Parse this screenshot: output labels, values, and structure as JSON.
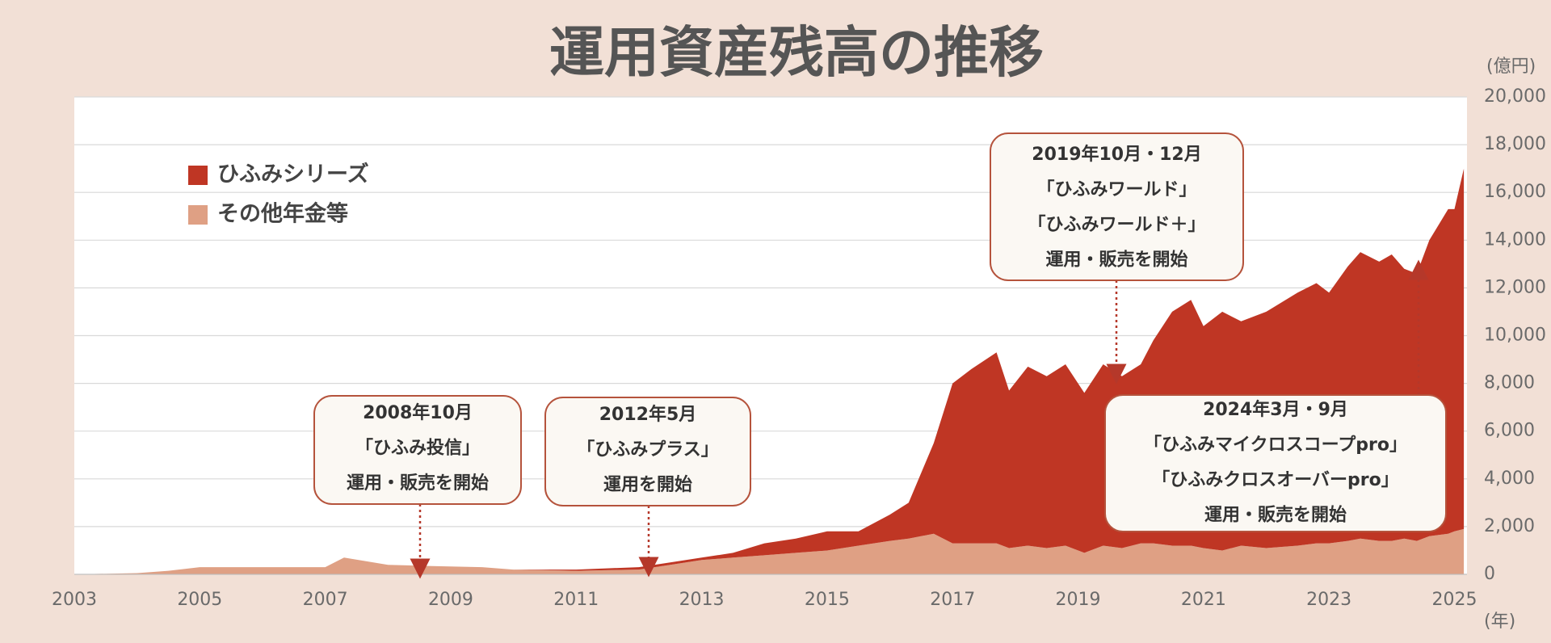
{
  "chart_data": {
    "type": "stacked_area",
    "title": "運用資産残高の推移",
    "ylabel": "(億円)",
    "xlabel": "(年)",
    "x": [
      2003,
      2004,
      2004.5,
      2005,
      2006,
      2007,
      2007.3,
      2008,
      2008.7,
      2009.5,
      2010,
      2011,
      2012,
      2012.5,
      2013,
      2013.5,
      2014,
      2014.5,
      2015,
      2015.5,
      2016,
      2016.3,
      2016.7,
      2017,
      2017.3,
      2017.7,
      2017.9,
      2018.2,
      2018.5,
      2018.8,
      2019.1,
      2019.4,
      2019.7,
      2020,
      2020.2,
      2020.5,
      2020.8,
      2021,
      2021.3,
      2021.6,
      2022,
      2022.5,
      2022.8,
      2023,
      2023.3,
      2023.5,
      2023.8,
      2024,
      2024.2,
      2024.4,
      2024.6,
      2024.9,
      2025,
      2025.15
    ],
    "series": [
      {
        "name": "ひふみシリーズ",
        "color": "#bf3624",
        "values": [
          0,
          0,
          0,
          0,
          0,
          0,
          0,
          0,
          0,
          0,
          0,
          50,
          100,
          100,
          100,
          200,
          500,
          600,
          800,
          600,
          1100,
          1500,
          3800,
          6700,
          7300,
          8000,
          6600,
          7500,
          7200,
          7600,
          6700,
          7600,
          7200,
          7500,
          8500,
          9800,
          10300,
          9300,
          10000,
          9400,
          9900,
          10600,
          10900,
          10500,
          11500,
          12000,
          11700,
          12000,
          11300,
          11200,
          12400,
          13600,
          13500,
          15100
        ]
      },
      {
        "name": "その他年金等",
        "color": "#dfa084",
        "values": [
          0,
          50,
          150,
          300,
          300,
          300,
          700,
          400,
          350,
          300,
          200,
          150,
          200,
          400,
          600,
          700,
          800,
          900,
          1000,
          1200,
          1400,
          1500,
          1700,
          1300,
          1300,
          1300,
          1100,
          1200,
          1100,
          1200,
          900,
          1200,
          1100,
          1300,
          1300,
          1200,
          1200,
          1100,
          1000,
          1200,
          1100,
          1200,
          1300,
          1300,
          1400,
          1500,
          1400,
          1400,
          1500,
          1400,
          1600,
          1700,
          1800,
          1900
        ]
      }
    ],
    "xlim": [
      2003,
      2025.2
    ],
    "xticks": [
      2003,
      2005,
      2007,
      2009,
      2011,
      2013,
      2015,
      2017,
      2019,
      2021,
      2023,
      2025
    ],
    "ylim": [
      0,
      20000
    ],
    "yticks": [
      0,
      {
        "value": 2000,
        "label": "2,000"
      },
      {
        "value": 4000,
        "label": "4,000"
      },
      {
        "value": 6000,
        "label": "6,000"
      },
      {
        "value": 8000,
        "label": "8,000"
      },
      {
        "value": 10000,
        "label": "10,000"
      },
      {
        "value": 12000,
        "label": "12,000"
      },
      {
        "value": 14000,
        "label": "14,000"
      },
      {
        "value": 16000,
        "label": "16,000"
      },
      {
        "value": 18000,
        "label": "18,000"
      },
      {
        "value": 20000,
        "label": "20,000"
      }
    ],
    "grid": true,
    "annotations": [
      {
        "lines": [
          "2008年10月",
          "「ひふみ投信」",
          "運用・販売を開始"
        ]
      },
      {
        "lines": [
          "2012年5月",
          "「ひふみプラス」",
          "運用を開始"
        ]
      },
      {
        "lines": [
          "2019年10月・12月",
          "「ひふみワールド」",
          "「ひふみワールド＋」",
          "運用・販売を開始"
        ]
      },
      {
        "lines": [
          "2024年3月・9月",
          "「ひふみマイクロスコープpro」",
          "「ひふみクロスオーバーpro」",
          "運用・販売を開始"
        ]
      }
    ]
  }
}
